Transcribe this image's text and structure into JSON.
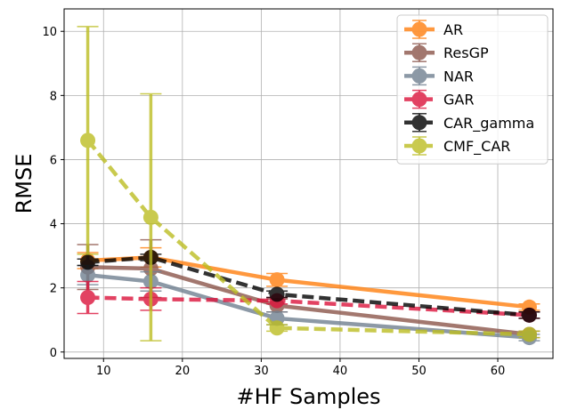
{
  "chart_data": {
    "type": "line",
    "xlabel": "#HF Samples",
    "ylabel": "RMSE",
    "xlim": [
      5,
      67
    ],
    "ylim": [
      -0.2,
      10.7
    ],
    "xticks": [
      10,
      20,
      30,
      40,
      50,
      60
    ],
    "yticks": [
      0,
      2,
      4,
      6,
      8,
      10
    ],
    "grid": true,
    "legend_position": "top-right",
    "x": [
      8,
      16,
      32,
      64
    ],
    "series": [
      {
        "name": "AR",
        "values": [
          2.85,
          2.95,
          2.25,
          1.4
        ],
        "errors": [
          0.25,
          0.3,
          0.2,
          0.1
        ],
        "color": "#ff7f0e",
        "dashed": false
      },
      {
        "name": "ResGP",
        "values": [
          2.65,
          2.6,
          1.45,
          0.55
        ],
        "errors": [
          0.7,
          0.9,
          0.2,
          0.1
        ],
        "color": "#8c564b",
        "dashed": false
      },
      {
        "name": "NAR",
        "values": [
          2.4,
          2.2,
          1.05,
          0.45
        ],
        "errors": [
          0.3,
          0.3,
          0.2,
          0.1
        ],
        "color": "#708090",
        "dashed": false
      },
      {
        "name": "GAR",
        "values": [
          1.7,
          1.65,
          1.6,
          1.15
        ],
        "errors": [
          0.5,
          0.35,
          0.1,
          0.1
        ],
        "color": "#dc143c",
        "dashed": true
      },
      {
        "name": "CAR_gamma",
        "values": [
          2.8,
          2.95,
          1.8,
          1.15
        ],
        "errors": [
          0.1,
          0.1,
          0.1,
          0.1
        ],
        "color": "#000000",
        "dashed": true
      },
      {
        "name": "CMF_CAR",
        "values": [
          6.6,
          4.2,
          0.75,
          0.55
        ],
        "errors": [
          3.55,
          3.85,
          0.1,
          0.1
        ],
        "color": "#bcbd22",
        "dashed": true
      }
    ]
  }
}
